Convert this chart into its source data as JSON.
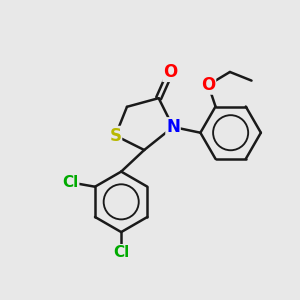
{
  "bg_color": "#e8e8e8",
  "bond_color": "#1a1a1a",
  "S_color": "#b8b800",
  "N_color": "#0000ff",
  "O_color": "#ff0000",
  "Cl_color": "#00aa00",
  "bond_width": 1.8,
  "figsize": [
    3.0,
    3.0
  ],
  "dpi": 100,
  "xlim": [
    0,
    10
  ],
  "ylim": [
    0,
    10
  ]
}
